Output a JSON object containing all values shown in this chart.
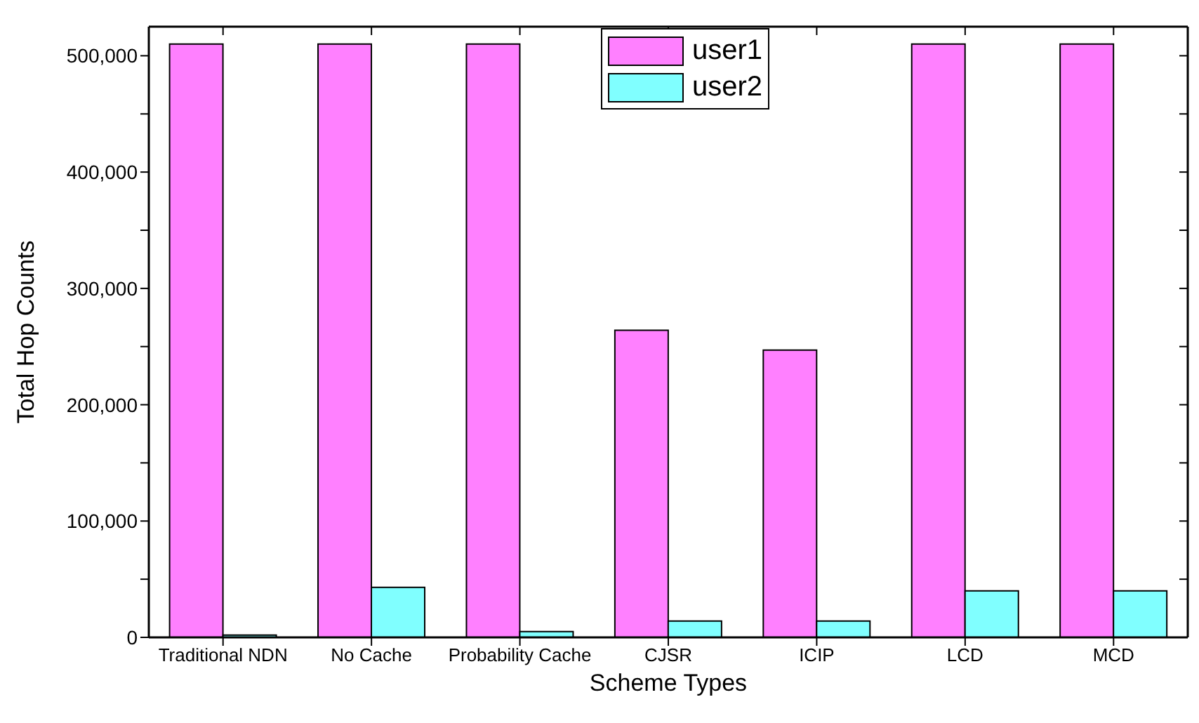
{
  "chart_data": {
    "type": "bar",
    "xlabel": "Scheme Types",
    "ylabel": "Total Hop Counts",
    "categories": [
      "Traditional NDN",
      "No Cache",
      "Probability Cache",
      "CJSR",
      "ICIP",
      "LCD",
      "MCD"
    ],
    "series": [
      {
        "name": "user1",
        "color": "#ff80ff",
        "values": [
          510000,
          510000,
          510000,
          264000,
          247000,
          510000,
          510000
        ]
      },
      {
        "name": "user2",
        "color": "#80ffff",
        "values": [
          2000,
          43000,
          5000,
          14000,
          14000,
          40000,
          40000
        ]
      }
    ],
    "ylim": [
      0,
      525000
    ],
    "yticks": [
      0,
      {
        "value": 50000,
        "label": null
      },
      {
        "value": 100000,
        "label": "100,000"
      },
      {
        "value": 150000,
        "label": null
      },
      {
        "value": 200000,
        "label": "200,000"
      },
      {
        "value": 250000,
        "label": null
      },
      {
        "value": 300000,
        "label": "300,000"
      },
      {
        "value": 350000,
        "label": null
      },
      {
        "value": 400000,
        "label": "400,000"
      },
      {
        "value": 450000,
        "label": null
      },
      {
        "value": 500000,
        "label": "500,000"
      }
    ],
    "legend": "top",
    "grid": false
  }
}
